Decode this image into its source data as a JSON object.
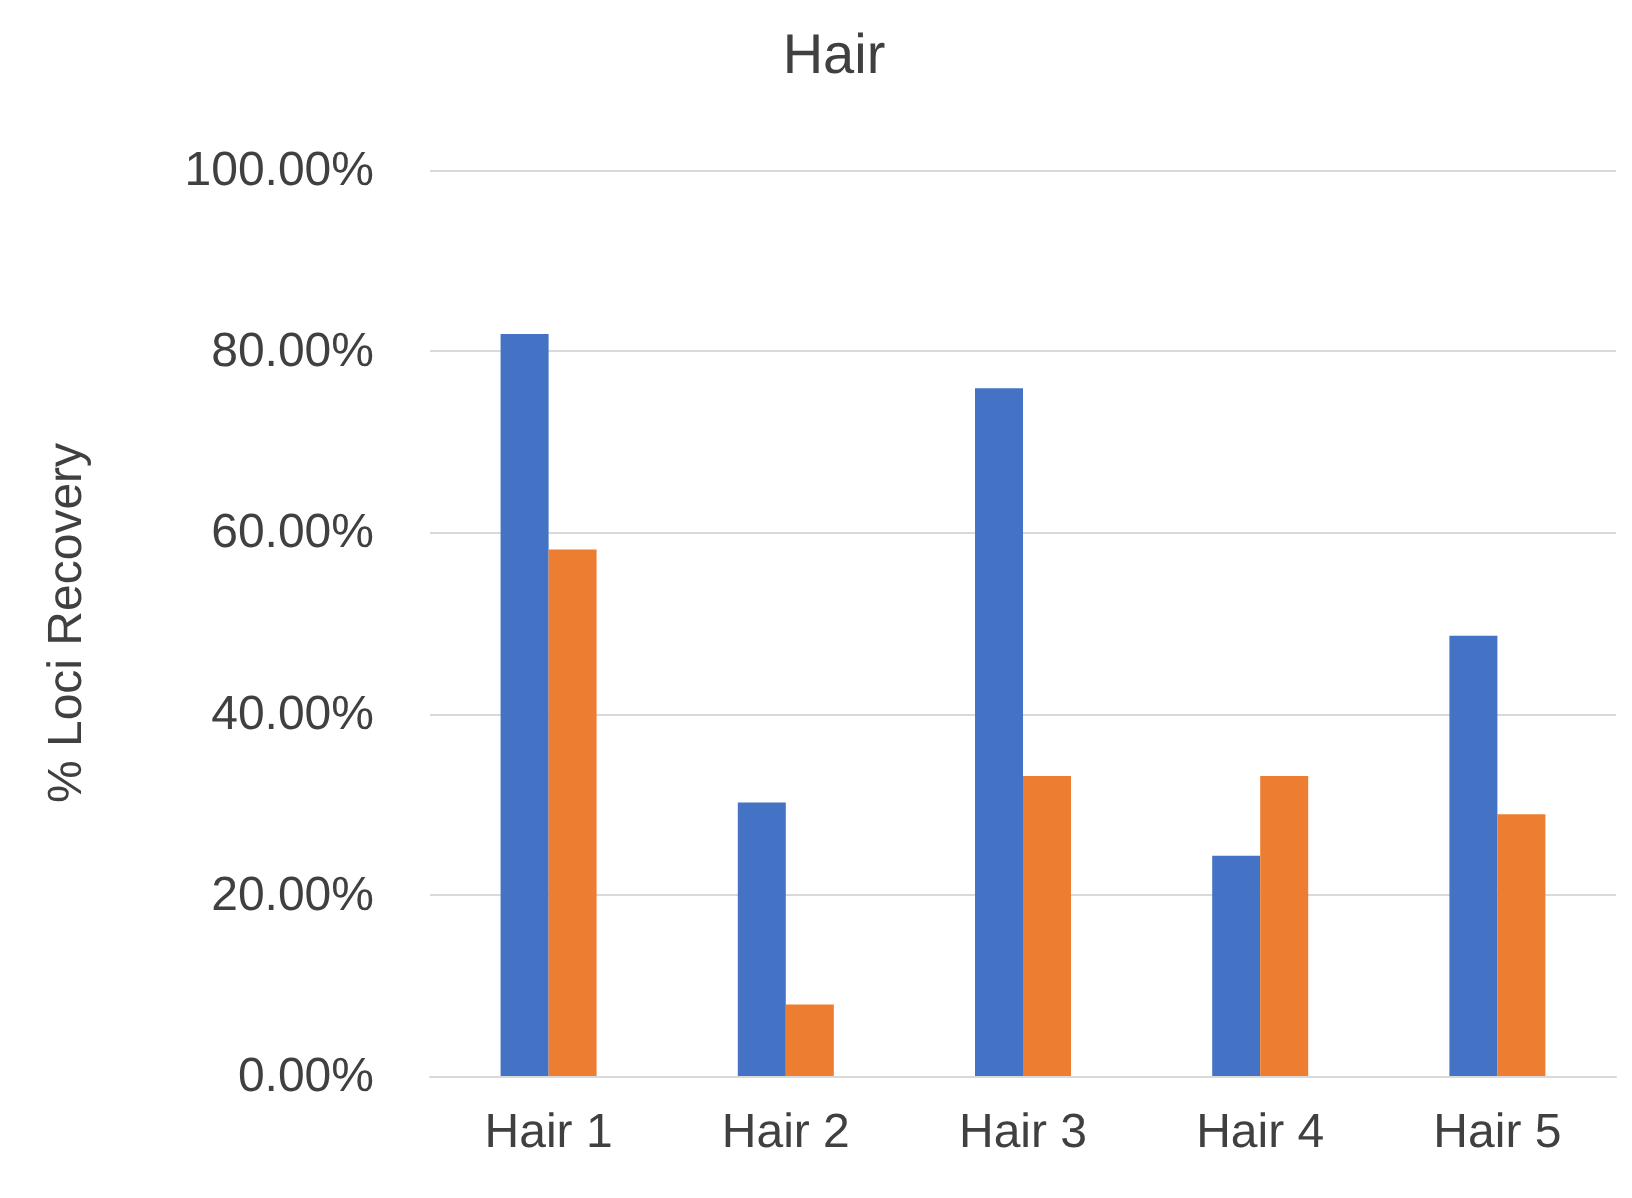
{
  "chart_data": {
    "type": "bar",
    "title": "Hair",
    "ylabel": "% Loci Recovery",
    "categories": [
      "Hair 1",
      "Hair 2",
      "Hair 3",
      "Hair 4",
      "Hair 5"
    ],
    "series": [
      {
        "color": "#4472c4",
        "values": [
          81.9,
          30.2,
          75.9,
          24.3,
          48.6
        ]
      },
      {
        "color": "#ed7d31",
        "values": [
          58.1,
          7.9,
          33.1,
          33.1,
          28.9
        ]
      }
    ],
    "ylim": [
      0,
      100
    ],
    "yticks": [
      {
        "value": 0,
        "label": "0.00%"
      },
      {
        "value": 20,
        "label": "20.00%"
      },
      {
        "value": 40,
        "label": "40.00%"
      },
      {
        "value": 60,
        "label": "60.00%"
      },
      {
        "value": 80,
        "label": "80.00%"
      },
      {
        "value": 100,
        "label": "100.00%"
      }
    ],
    "grid": "y"
  }
}
